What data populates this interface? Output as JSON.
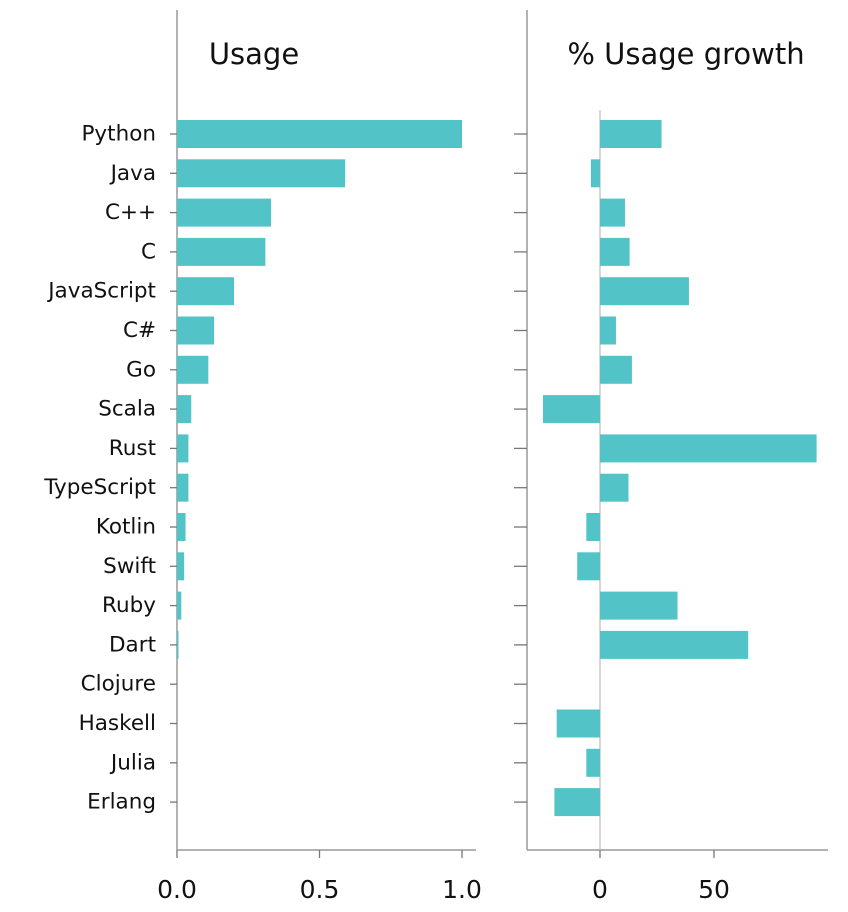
{
  "chart_data": [
    {
      "type": "bar",
      "orientation": "horizontal",
      "title": "Usage",
      "categories": [
        "Python",
        "Java",
        "C++",
        "C",
        "JavaScript",
        "C#",
        "Go",
        "Scala",
        "Rust",
        "TypeScript",
        "Kotlin",
        "Swift",
        "Ruby",
        "Dart",
        "Clojure",
        "Haskell",
        "Julia",
        "Erlang"
      ],
      "values": [
        1.0,
        0.59,
        0.33,
        0.31,
        0.2,
        0.13,
        0.11,
        0.05,
        0.04,
        0.04,
        0.03,
        0.025,
        0.015,
        0.005,
        0.0,
        0.0,
        0.0,
        0.0
      ],
      "xlim": [
        0,
        1.05
      ],
      "xticks": [
        0,
        0.5,
        1.0
      ],
      "xtick_labels": [
        "0.0",
        "0.5",
        "1.0"
      ],
      "bar_color": "#52c4c8"
    },
    {
      "type": "bar",
      "orientation": "horizontal",
      "title": "% Usage growth",
      "categories": [
        "Python",
        "Java",
        "C++",
        "C",
        "JavaScript",
        "C#",
        "Go",
        "Scala",
        "Rust",
        "TypeScript",
        "Kotlin",
        "Swift",
        "Ruby",
        "Dart",
        "Clojure",
        "Haskell",
        "Julia",
        "Erlang"
      ],
      "values": [
        27,
        -4,
        11,
        13,
        39,
        7,
        14,
        -25,
        95,
        12.5,
        -6,
        -10,
        34,
        65,
        0,
        -19,
        -6,
        -20
      ],
      "xlim": [
        -32,
        100
      ],
      "xticks": [
        0,
        50
      ],
      "xtick_labels": [
        "0",
        "50"
      ],
      "bar_color": "#52c4c8"
    }
  ]
}
